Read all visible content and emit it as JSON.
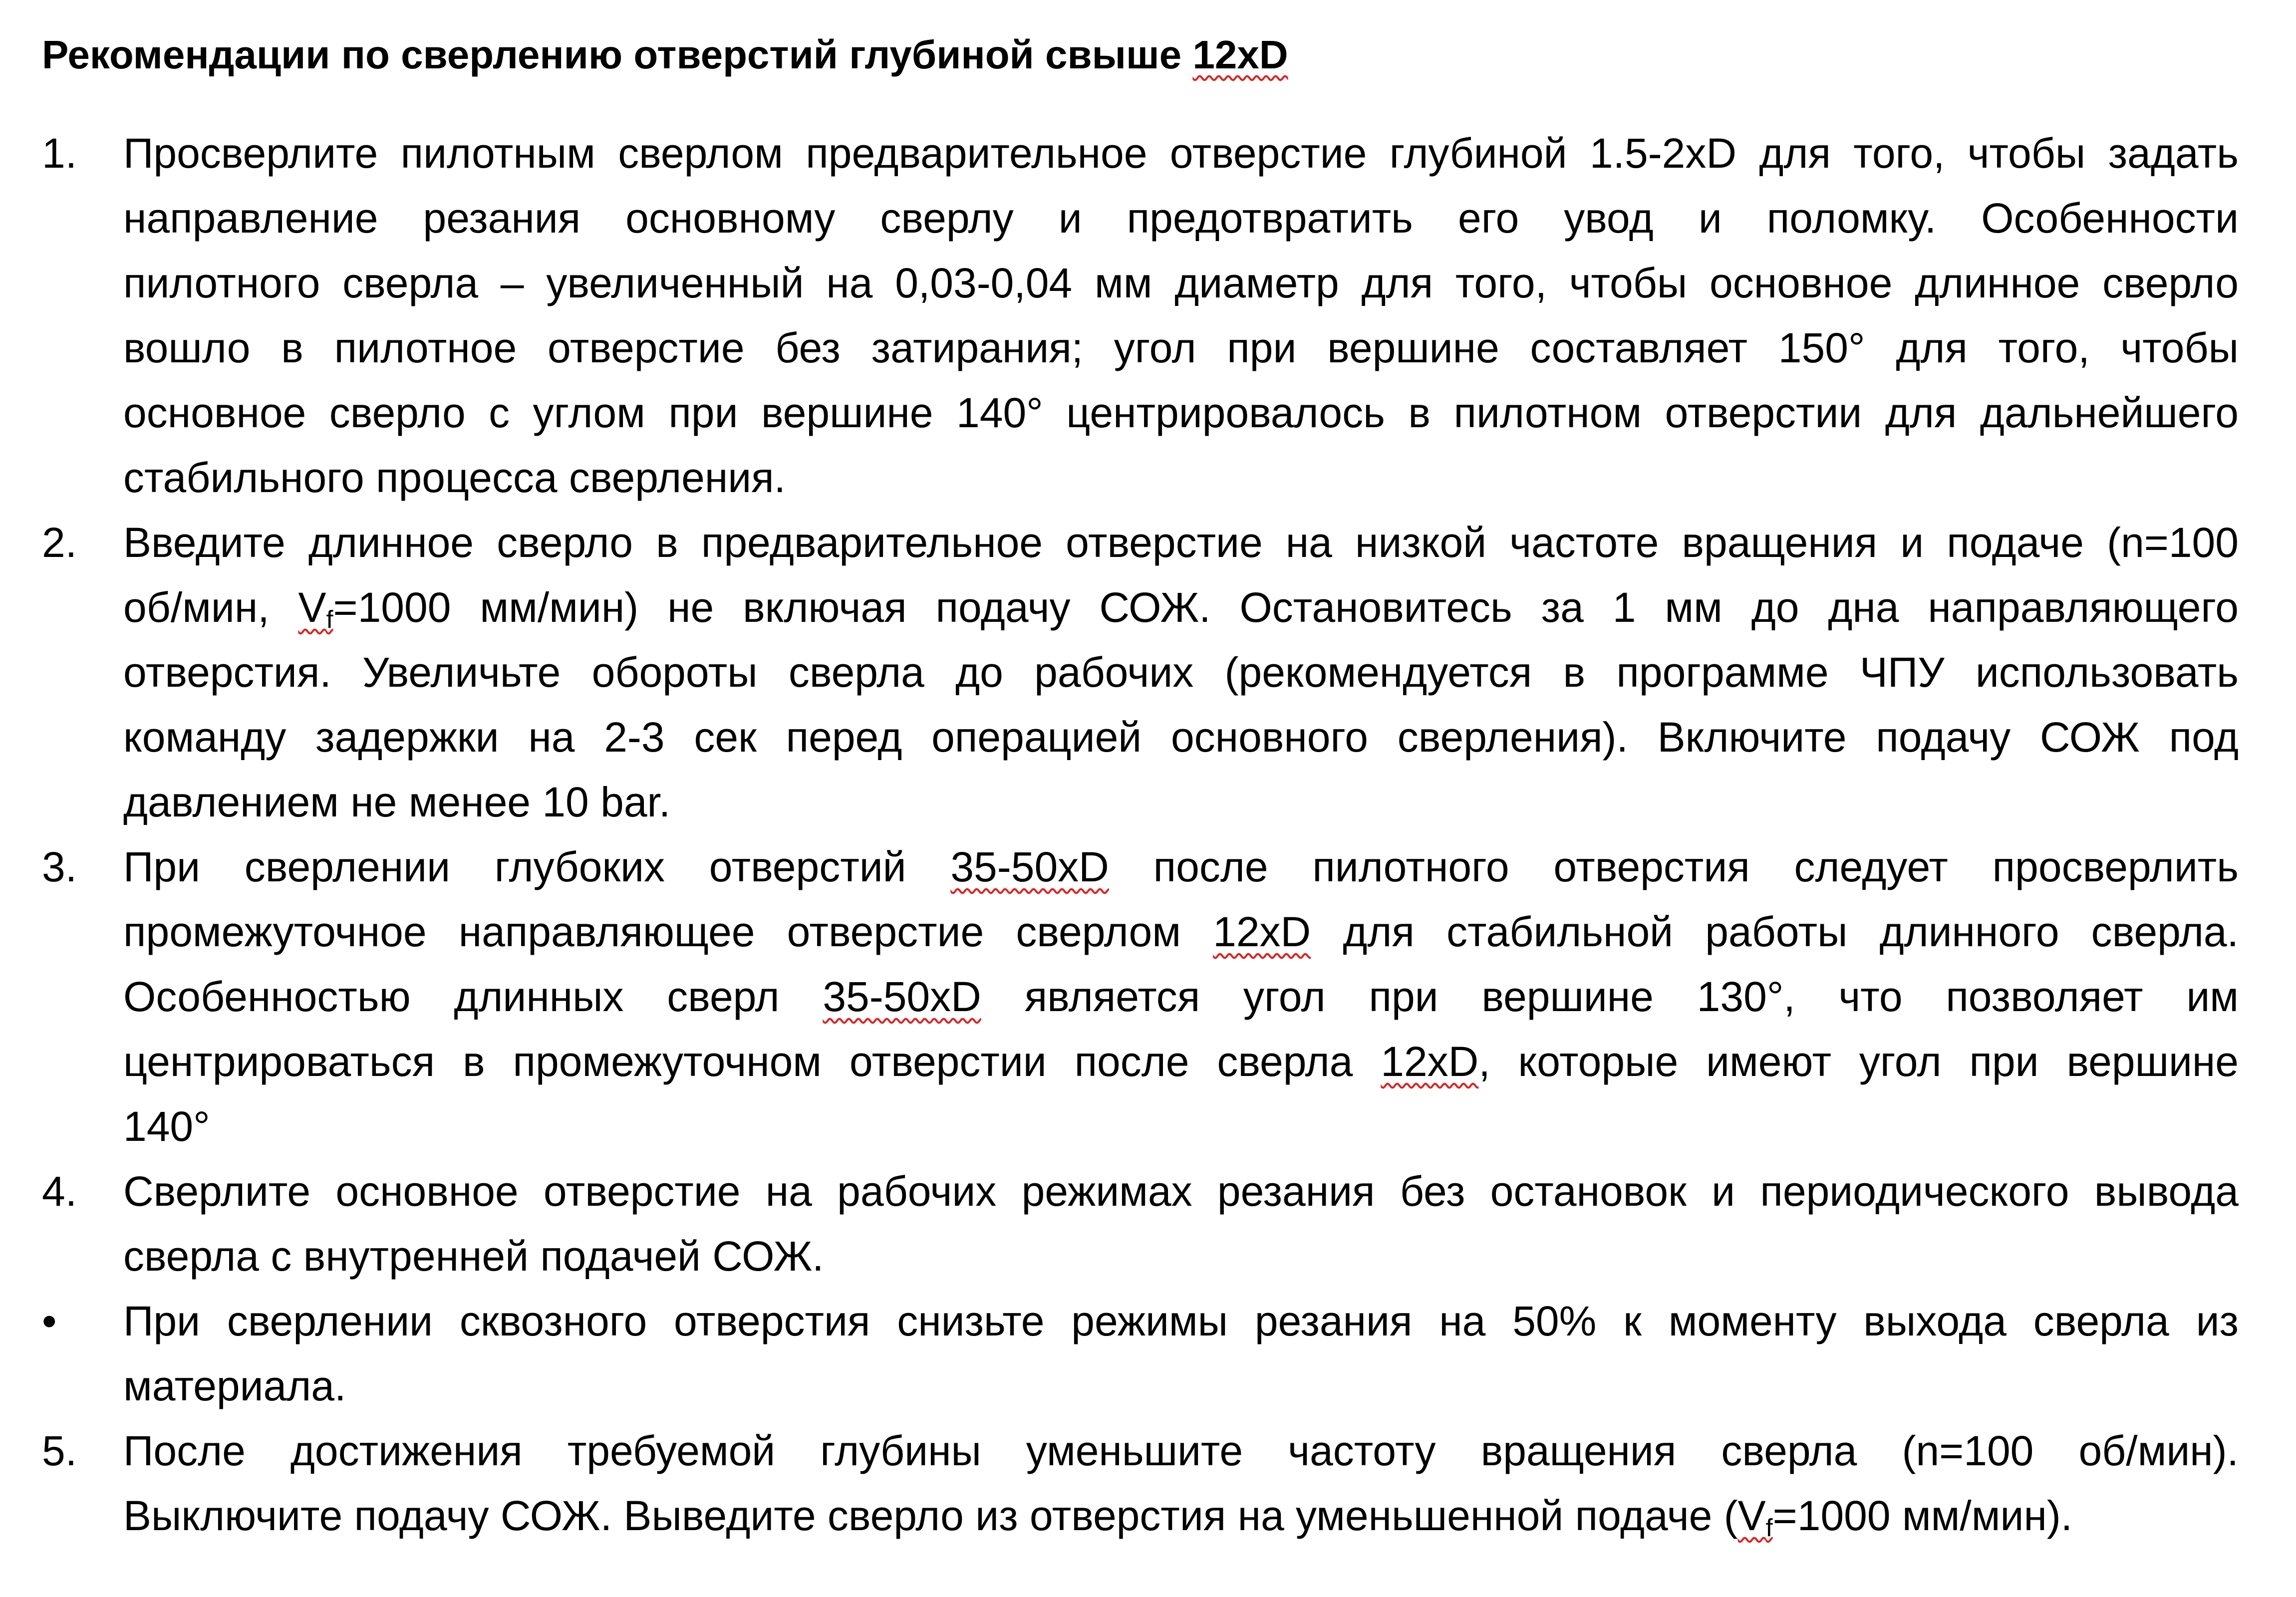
{
  "document": {
    "title": [
      {
        "t": "Рекомендации по сверлению отверстий глубиной свыше "
      },
      {
        "t": "12xD",
        "spell": true
      }
    ],
    "items": [
      {
        "marker": "1.",
        "lines": [
          [
            "Просверлите пилотным сверлом предварительное отверстие глубиной 1.5-2xD для того, чтобы задать"
          ],
          [
            "направление резания основному сверлу и предотвратить его увод и поломку. Особенности"
          ],
          [
            "пилотного сверла – увеличенный на 0,03-0,04 мм диаметр для того, чтобы основное длинное сверло"
          ],
          [
            "вошло в пилотное отверстие без затирания; угол при вершине составляет 150° для того, чтобы"
          ],
          [
            "основное сверло с углом при вершине 140° центрировалось в пилотном отверстии для дальнейшего"
          ],
          [
            "стабильного процесса сверления."
          ]
        ]
      },
      {
        "marker": "2.",
        "lines": [
          [
            "Введите длинное сверло в предварительное отверстие на низкой частоте вращения и подаче (n=100"
          ],
          [
            "об/мин, ",
            {
              "t": "V",
              "sub": "f",
              "spell": true
            },
            "=1000 мм/мин) не включая подачу СОЖ. Остановитесь за 1 мм до дна направляющего"
          ],
          [
            "отверстия. Увеличьте обороты сверла до рабочих (рекомендуется в программе ЧПУ использовать"
          ],
          [
            "команду задержки на 2-3 сек перед операцией основного сверления). Включите подачу СОЖ под"
          ],
          [
            "давлением не менее 10 bar."
          ]
        ]
      },
      {
        "marker": "3.",
        "lines": [
          [
            "При сверлении глубоких отверстий ",
            {
              "t": "35-50xD",
              "spell": true
            },
            " после пилотного отверстия следует просверлить"
          ],
          [
            "промежуточное направляющее отверстие сверлом ",
            {
              "t": "12xD",
              "spell": true
            },
            " для стабильной работы длинного сверла."
          ],
          [
            "Особенностью длинных сверл ",
            {
              "t": "35-50xD",
              "spell": true
            },
            " является угол при вершине 130°, что позволяет им"
          ],
          [
            "центрироваться в промежуточном отверстии после сверла ",
            {
              "t": "12xD",
              "spell": true
            },
            ", которые имеют угол при вершине"
          ],
          [
            "140°"
          ]
        ]
      },
      {
        "marker": "4.",
        "lines": [
          [
            "Сверлите основное отверстие на рабочих режимах резания без остановок и периодического вывода"
          ],
          [
            "сверла с внутренней подачей СОЖ."
          ]
        ]
      },
      {
        "marker": "•",
        "lines": [
          [
            "При сверлении сквозного отверстия снизьте режимы резания на 50% к моменту выхода сверла из"
          ],
          [
            "материала."
          ]
        ]
      },
      {
        "marker": "5.",
        "lines": [
          [
            "После достижения требуемой глубины уменьшите частоту вращения сверла (n=100 об/мин)."
          ],
          [
            "Выключите подачу СОЖ. Выведите сверло из отверстия на уменьшенной подаче (",
            {
              "t": "V",
              "sub": "f",
              "spell": true
            },
            "=1000 мм/мин)."
          ]
        ]
      }
    ]
  },
  "colors": {
    "text": "#000000",
    "spellcheck_underline": "#e02020",
    "background": "#ffffff"
  }
}
